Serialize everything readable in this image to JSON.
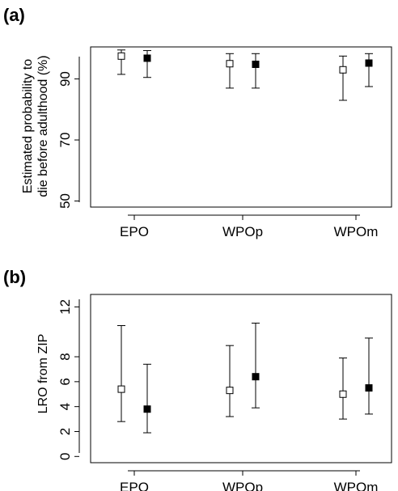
{
  "chart_data": [
    {
      "panel_label": "(a)",
      "type": "scatter",
      "ylabel_lines": [
        "Estimated probability to",
        "die before adulthood (%)"
      ],
      "categories": [
        "EPO",
        "WPOp",
        "WPOm"
      ],
      "ylim": [
        48,
        100.5
      ],
      "yticks": [
        50,
        70,
        90
      ],
      "series": [
        {
          "marker": "open-square",
          "points": [
            {
              "category": "EPO",
              "value": 97.5,
              "low": 91.5,
              "high": 99.5
            },
            {
              "category": "WPOp",
              "value": 95.0,
              "low": 87.0,
              "high": 98.3
            },
            {
              "category": "WPOm",
              "value": 93.0,
              "low": 83.0,
              "high": 97.5
            }
          ]
        },
        {
          "marker": "filled-square",
          "points": [
            {
              "category": "EPO",
              "value": 96.8,
              "low": 90.5,
              "high": 99.3
            },
            {
              "category": "WPOp",
              "value": 94.8,
              "low": 87.0,
              "high": 98.3
            },
            {
              "category": "WPOm",
              "value": 95.2,
              "low": 87.5,
              "high": 98.3
            }
          ]
        }
      ]
    },
    {
      "panel_label": "(b)",
      "type": "scatter",
      "ylabel_lines": [
        "LRO from ZIP"
      ],
      "categories": [
        "EPO",
        "WPOp",
        "WPOm"
      ],
      "ylim": [
        -0.5,
        13
      ],
      "yticks": [
        0,
        2,
        4,
        6,
        8,
        12
      ],
      "series": [
        {
          "marker": "open-square",
          "points": [
            {
              "category": "EPO",
              "value": 5.4,
              "low": 2.8,
              "high": 10.5
            },
            {
              "category": "WPOp",
              "value": 5.3,
              "low": 3.2,
              "high": 8.9
            },
            {
              "category": "WPOm",
              "value": 5.0,
              "low": 3.0,
              "high": 7.9
            }
          ]
        },
        {
          "marker": "filled-square",
          "points": [
            {
              "category": "EPO",
              "value": 3.8,
              "low": 1.9,
              "high": 7.4
            },
            {
              "category": "WPOp",
              "value": 6.4,
              "low": 3.9,
              "high": 10.7
            },
            {
              "category": "WPOm",
              "value": 5.5,
              "low": 3.4,
              "high": 9.5
            }
          ]
        }
      ]
    }
  ]
}
